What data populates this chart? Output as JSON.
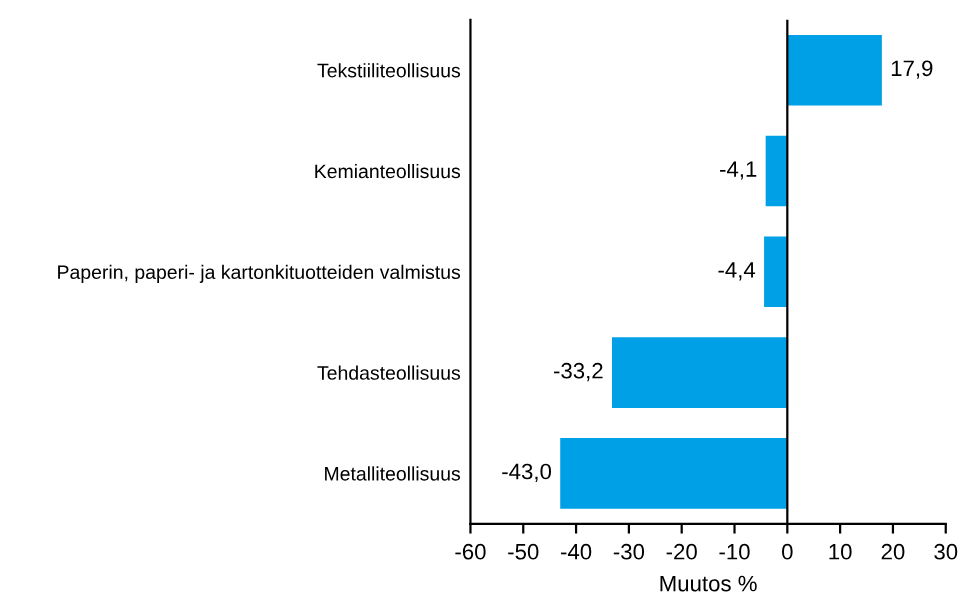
{
  "chart_data": {
    "type": "bar",
    "orientation": "horizontal",
    "xlabel": "Muutos %",
    "categories": [
      "Tekstiiliteollisuus",
      "Kemianteollisuus",
      "Paperin, paperi- ja kartonkituotteiden valmistus",
      "Tehdasteollisuus",
      "Metalliteollisuus"
    ],
    "values": [
      17.9,
      -4.1,
      -4.4,
      -33.2,
      -43.0
    ],
    "value_labels": [
      "17,9",
      "-4,1",
      "-4,4",
      "-33,2",
      "-43,0"
    ],
    "color": "#00a0e6",
    "xlim": [
      -60,
      30
    ],
    "xticks": [
      -60,
      -50,
      -40,
      -30,
      -20,
      -10,
      0,
      10,
      20,
      30
    ],
    "ref_lines": [
      {
        "axis": "x",
        "value": 0,
        "color": "#000000"
      }
    ]
  }
}
